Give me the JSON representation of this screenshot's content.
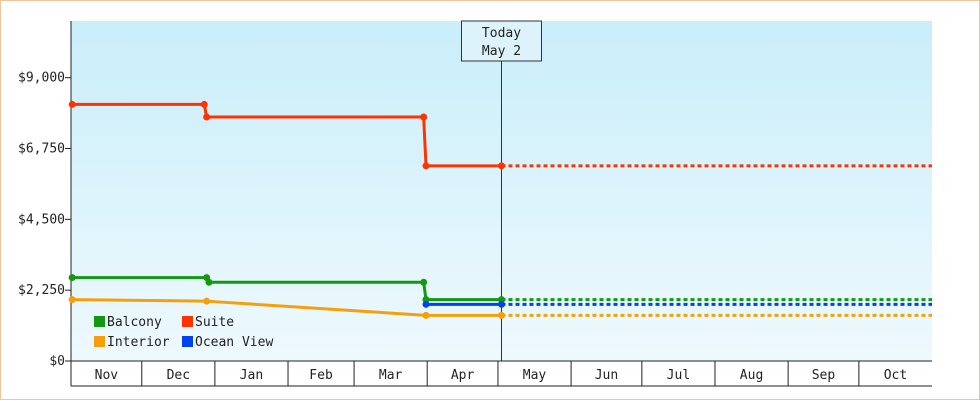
{
  "chart_data": {
    "type": "line",
    "title": "",
    "xlabel": "",
    "ylabel": "",
    "ylim": [
      0,
      10800
    ],
    "y_ticks": [
      {
        "value": 0,
        "label": "$0"
      },
      {
        "value": 2250,
        "label": "$2,250"
      },
      {
        "value": 4500,
        "label": "$4,500"
      },
      {
        "value": 6750,
        "label": "$6,750"
      },
      {
        "value": 9000,
        "label": "$9,000"
      }
    ],
    "x_range": [
      "2024-11-01",
      "2025-10-31"
    ],
    "months": [
      "Nov",
      "Dec",
      "Jan",
      "Feb",
      "Mar",
      "Apr",
      "May",
      "Jun",
      "Jul",
      "Aug",
      "Sep",
      "Oct"
    ],
    "today": {
      "date": "2025-05-02",
      "line1": "Today",
      "line2": "May 2"
    },
    "grid": false,
    "legend_position": "bottom-left",
    "series": [
      {
        "name": "Balcony",
        "color": "#119911",
        "points": [
          {
            "date": "2024-11-01",
            "value": 2650
          },
          {
            "date": "2024-12-28",
            "value": 2650
          },
          {
            "date": "2024-12-29",
            "value": 2500
          },
          {
            "date": "2025-03-30",
            "value": 2500
          },
          {
            "date": "2025-03-31",
            "value": 1950
          },
          {
            "date": "2025-05-02",
            "value": 1950
          }
        ]
      },
      {
        "name": "Suite",
        "color": "#ff3300",
        "points": [
          {
            "date": "2024-11-01",
            "value": 8150
          },
          {
            "date": "2024-12-27",
            "value": 8150
          },
          {
            "date": "2024-12-28",
            "value": 7750
          },
          {
            "date": "2025-03-30",
            "value": 7750
          },
          {
            "date": "2025-03-31",
            "value": 6200
          },
          {
            "date": "2025-05-02",
            "value": 6200
          }
        ]
      },
      {
        "name": "Interior",
        "color": "#f5a00a",
        "points": [
          {
            "date": "2024-11-01",
            "value": 1950
          },
          {
            "date": "2024-12-28",
            "value": 1900
          },
          {
            "date": "2025-03-31",
            "value": 1450
          },
          {
            "date": "2025-05-02",
            "value": 1450
          }
        ]
      },
      {
        "name": "Ocean View",
        "color": "#0044ee",
        "points": [
          {
            "date": "2025-03-31",
            "value": 1800
          },
          {
            "date": "2025-05-02",
            "value": 1800
          }
        ]
      }
    ]
  }
}
